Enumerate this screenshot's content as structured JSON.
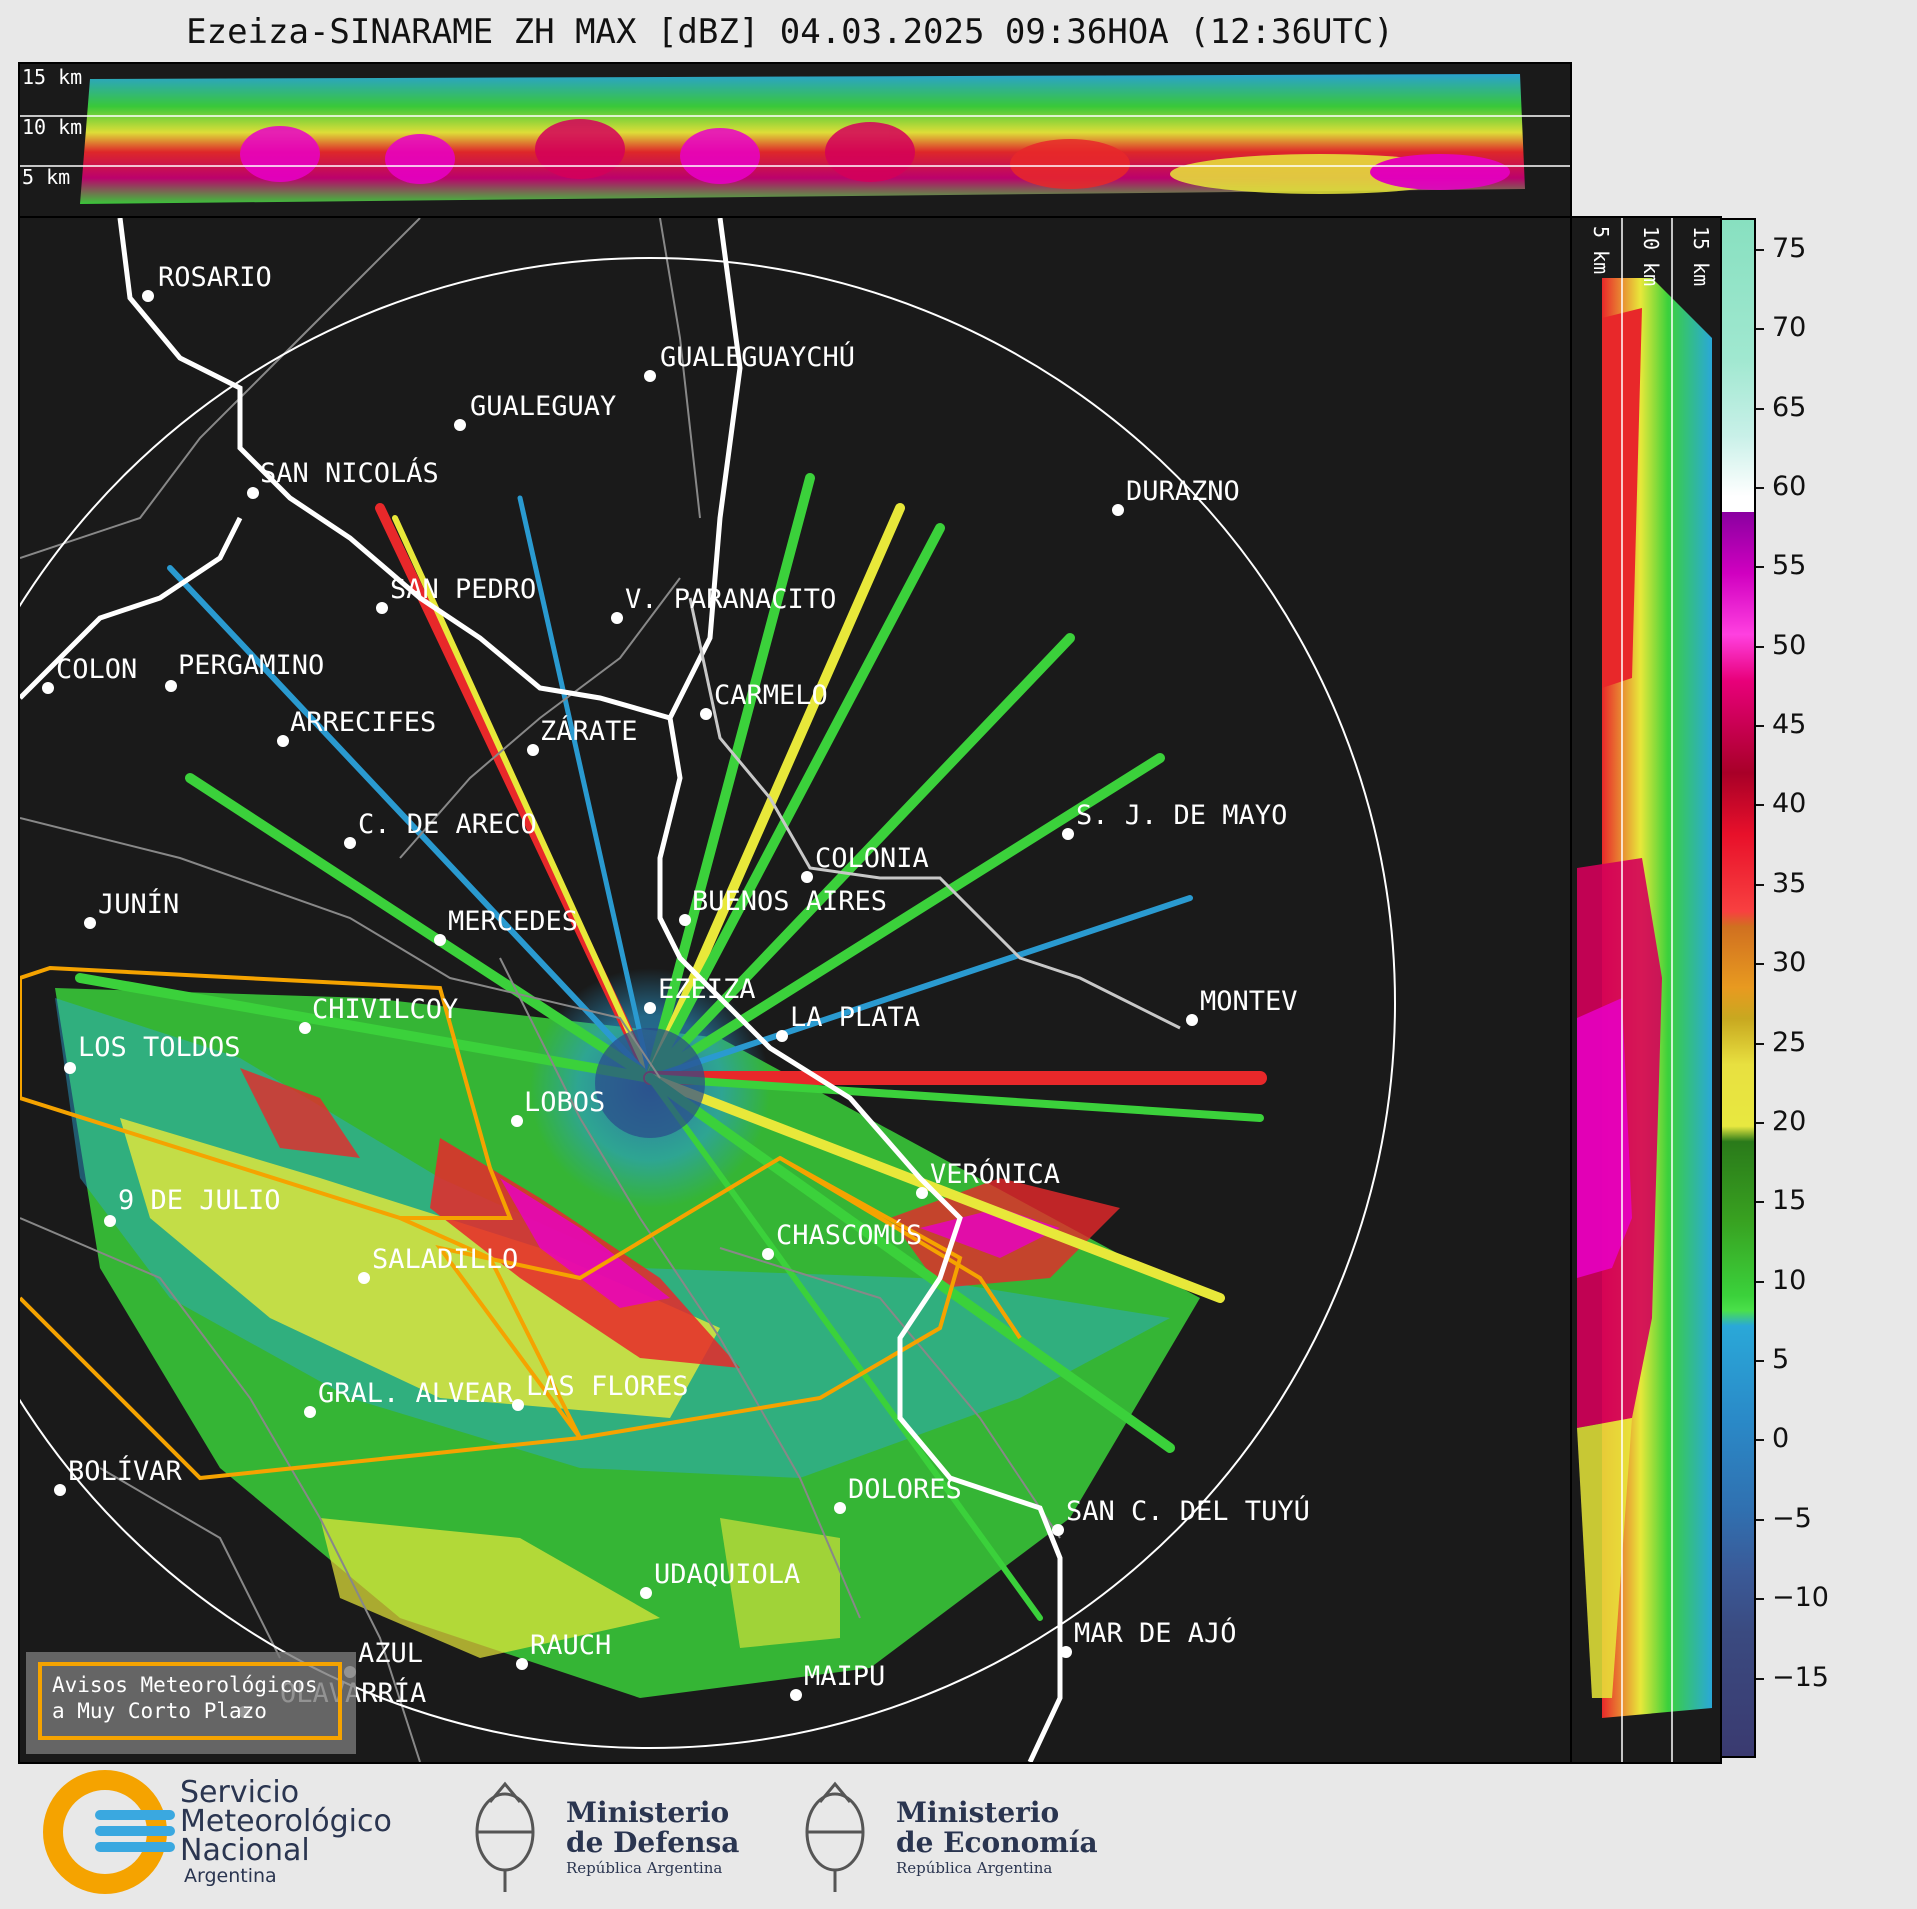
{
  "title": "Ezeiza-SINARAME ZH MAX [dBZ] 04.03.2025 09:36HOA (12:36UTC)",
  "top_panel": {
    "height_labels": [
      "15 km",
      "10 km",
      "5 km"
    ]
  },
  "side_panel": {
    "height_labels": [
      "5 km",
      "10 km",
      "15 km"
    ]
  },
  "colorbar": {
    "unit": "dBZ",
    "ticks": [
      "75",
      "70",
      "65",
      "60",
      "55",
      "50",
      "45",
      "40",
      "35",
      "30",
      "25",
      "20",
      "15",
      "10",
      "5",
      "0",
      "−5",
      "−10",
      "−15"
    ],
    "range": [
      -20,
      77
    ]
  },
  "cities": [
    {
      "name": "ROSARIO"
    },
    {
      "name": "GUALEGUAYCHÚ"
    },
    {
      "name": "GUALEGUAY"
    },
    {
      "name": "SAN NICOLÁS"
    },
    {
      "name": "DURAZNO"
    },
    {
      "name": "SAN PEDRO"
    },
    {
      "name": "V. PARANACITO"
    },
    {
      "name": "COLON"
    },
    {
      "name": "PERGAMINO"
    },
    {
      "name": "CARMELO"
    },
    {
      "name": "ARRECIFES"
    },
    {
      "name": "ZÁRATE"
    },
    {
      "name": "S. J. DE MAYO"
    },
    {
      "name": "C. DE ARECO"
    },
    {
      "name": "COLONIA"
    },
    {
      "name": "JUNÍN"
    },
    {
      "name": "BUENOS AIRES"
    },
    {
      "name": "MERCEDES"
    },
    {
      "name": "MONTEV"
    },
    {
      "name": "EZEIZA"
    },
    {
      "name": "CHIVILCOY"
    },
    {
      "name": "LA PLATA"
    },
    {
      "name": "LOS TOLDOS"
    },
    {
      "name": "LOBOS"
    },
    {
      "name": "VERÓNICA"
    },
    {
      "name": "9 DE JULIO"
    },
    {
      "name": "CHASCOMÚS"
    },
    {
      "name": "SALADILLO"
    },
    {
      "name": "GRAL. ALVEAR"
    },
    {
      "name": "LAS FLORES"
    },
    {
      "name": "BOLÍVAR"
    },
    {
      "name": "DOLORES"
    },
    {
      "name": "SAN C. DEL TUYÚ"
    },
    {
      "name": "UDAQUIOLA"
    },
    {
      "name": "MAR DE AJÓ"
    },
    {
      "name": "AZUL"
    },
    {
      "name": "RAUCH"
    },
    {
      "name": "OLAVARRÍA"
    },
    {
      "name": "MAIPU"
    }
  ],
  "warning_box": {
    "line1": "Avisos Meteorológicos",
    "line2": "a Muy Corto Plazo"
  },
  "footer": {
    "smn": {
      "line1": "Servicio",
      "line2": "Meteorológico",
      "line3": "Nacional",
      "line4": "Argentina"
    },
    "defensa": {
      "line1": "Ministerio",
      "line2": "de Defensa",
      "line3": "República Argentina"
    },
    "economia": {
      "line1": "Ministerio",
      "line2": "de Economía",
      "line3": "República Argentina"
    }
  },
  "colors": {
    "river": "#ffffff",
    "coast": "#c8c8c8",
    "province_border": "#888888",
    "warning_polygon": "#f5a300",
    "background": "#1a1a1a"
  }
}
